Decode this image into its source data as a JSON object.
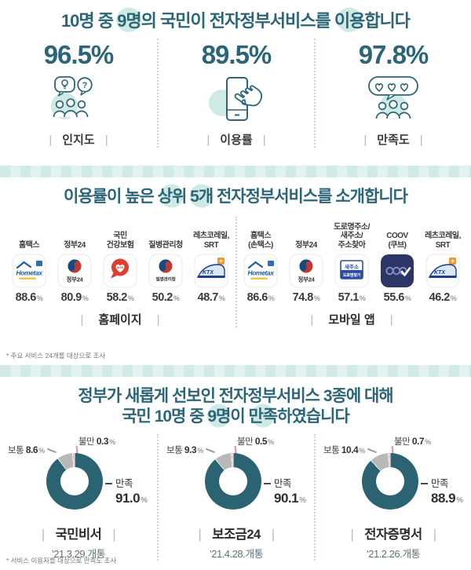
{
  "palette": {
    "accent_teal": "#2b6577",
    "highlight_circle": "#cfe9e4",
    "donut_satisfied": "#2c6372",
    "donut_neutral": "#b8b8b8",
    "donut_dissatisfied": "#f0a9b3",
    "text_dark": "#3a3a3a"
  },
  "section1": {
    "title_parts": [
      {
        "t": "10명 중 ",
        "h": false
      },
      {
        "t": "9명",
        "h": true
      },
      {
        "t": "의 국민이 전자정부서비스를 ",
        "h": false
      },
      {
        "t": "이용",
        "h": true
      },
      {
        "t": "합니다",
        "h": false
      }
    ],
    "stats": [
      {
        "value": "96.5%",
        "label": "인지도"
      },
      {
        "value": "89.5%",
        "label": "이용률"
      },
      {
        "value": "97.8%",
        "label": "만족도"
      }
    ]
  },
  "section2": {
    "title_parts": [
      {
        "t": "이용률이 높은 ",
        "h": false
      },
      {
        "t": "상위",
        "h": true
      },
      {
        "t": " ",
        "h": false
      },
      {
        "t": "5개",
        "h": true
      },
      {
        "t": " 전자정부서비스를 소개합니다",
        "h": false
      }
    ],
    "unit": "%",
    "groups": [
      {
        "label": "홈페이지",
        "services": [
          {
            "name": "홈택스",
            "value": "88.6"
          },
          {
            "name": "정부24",
            "value": "80.9"
          },
          {
            "name": "국민\n건강보험",
            "value": "58.2"
          },
          {
            "name": "질병관리청",
            "value": "50.2"
          },
          {
            "name": "레츠코레일,\nSRT",
            "value": "48.7"
          }
        ]
      },
      {
        "label": "모바일 앱",
        "services": [
          {
            "name": "홈택스\n(손택스)",
            "value": "86.6"
          },
          {
            "name": "정부24",
            "value": "74.8"
          },
          {
            "name": "도로명주소/\n새주소/\n주소찾아",
            "value": "57.1"
          },
          {
            "name": "COOV\n(쿠브)",
            "value": "55.6"
          },
          {
            "name": "레츠코레일,\nSRT",
            "value": "46.2"
          }
        ]
      }
    ],
    "footnote": "* 주요 서비스 24개를 대상으로 조사"
  },
  "section3": {
    "title_line1_parts": [
      {
        "t": "정부가 새롭게 선보인 전자정부서비스 3종에 대해",
        "h": false
      }
    ],
    "title_line2_parts": [
      {
        "t": "국민 10명 중 ",
        "h": false
      },
      {
        "t": "9명",
        "h": true
      },
      {
        "t": "이 ",
        "h": false
      },
      {
        "t": "만족",
        "h": true
      },
      {
        "t": "하였습니다",
        "h": false
      }
    ],
    "unit": "%",
    "legend": {
      "satisfied": "만족",
      "neutral": "보통",
      "dissatisfied": "불만"
    },
    "charts": [
      {
        "name": "국민비서",
        "date": "’21.3.29.개통",
        "satisfied": "91.0",
        "neutral": "8.6",
        "dissatisfied": "0.3"
      },
      {
        "name": "보조금24",
        "date": "’21.4.28.개통",
        "satisfied": "90.1",
        "neutral": "9.3",
        "dissatisfied": "0.5"
      },
      {
        "name": "전자증명서",
        "date": "’21.2.26.개통",
        "satisfied": "88.9",
        "neutral": "10.4",
        "dissatisfied": "0.7"
      }
    ],
    "footnote": "* 서비스 이용자를 대상으로 만족도 조사"
  },
  "chart_data": [
    {
      "type": "table",
      "title": "10명 중 9명의 국민이 전자정부서비스를 이용합니다",
      "categories": [
        "인지도",
        "이용률",
        "만족도"
      ],
      "values": [
        96.5,
        89.5,
        97.8
      ],
      "unit": "%"
    },
    {
      "type": "bar",
      "title": "이용률 상위 5개 전자정부서비스 - 홈페이지",
      "categories": [
        "홈택스",
        "정부24",
        "국민건강보험",
        "질병관리청",
        "레츠코레일, SRT"
      ],
      "values": [
        88.6,
        80.9,
        58.2,
        50.2,
        48.7
      ],
      "unit": "%",
      "footnote": "주요 서비스 24개를 대상으로 조사"
    },
    {
      "type": "bar",
      "title": "이용률 상위 5개 전자정부서비스 - 모바일 앱",
      "categories": [
        "홈택스(손택스)",
        "정부24",
        "도로명주소/새주소/주소찾아",
        "COOV(쿠브)",
        "레츠코레일, SRT"
      ],
      "values": [
        86.6,
        74.8,
        57.1,
        55.6,
        46.2
      ],
      "unit": "%"
    },
    {
      "type": "pie",
      "title": "국민비서 만족도 (’21.3.29.개통)",
      "categories": [
        "만족",
        "보통",
        "불만"
      ],
      "values": [
        91.0,
        8.6,
        0.3
      ],
      "unit": "%"
    },
    {
      "type": "pie",
      "title": "보조금24 만족도 (’21.4.28.개통)",
      "categories": [
        "만족",
        "보통",
        "불만"
      ],
      "values": [
        90.1,
        9.3,
        0.5
      ],
      "unit": "%"
    },
    {
      "type": "pie",
      "title": "전자증명서 만족도 (’21.2.26.개통)",
      "categories": [
        "만족",
        "보통",
        "불만"
      ],
      "values": [
        88.9,
        10.4,
        0.7
      ],
      "unit": "%",
      "footnote": "서비스 이용자를 대상으로 만족도 조사"
    }
  ]
}
